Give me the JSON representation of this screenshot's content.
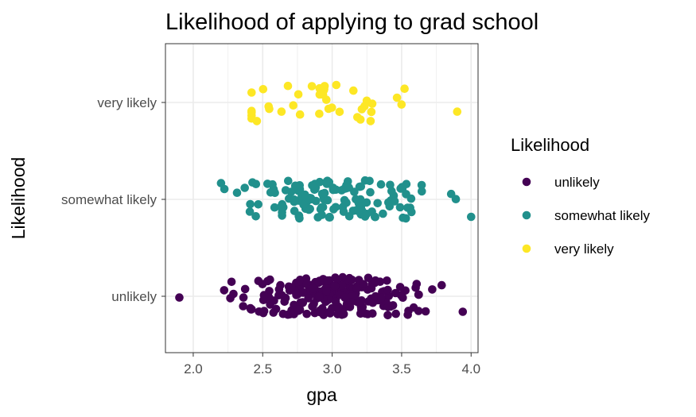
{
  "chart_data": {
    "type": "scatter",
    "title": "Likelihood of applying to grad school",
    "xlabel": "gpa",
    "ylabel": "Likelihood",
    "xlim": [
      1.8,
      4.05
    ],
    "x_ticks": [
      "2.0",
      "2.5",
      "3.0",
      "3.5",
      "4.0"
    ],
    "categories": [
      "unlikely",
      "somewhat likely",
      "very likely"
    ],
    "grid": true,
    "legend": {
      "title": "Likelihood",
      "position": "right"
    },
    "series": [
      {
        "name": "unlikely",
        "color": "#440154",
        "count": 220,
        "gpa_range": [
          1.9,
          3.94
        ]
      },
      {
        "name": "somewhat likely",
        "color": "#21908C",
        "count": 140,
        "gpa_range": [
          2.2,
          4.0
        ]
      },
      {
        "name": "very likely",
        "color": "#FDE725",
        "count": 40,
        "gpa_range": [
          2.42,
          3.9
        ]
      }
    ]
  }
}
